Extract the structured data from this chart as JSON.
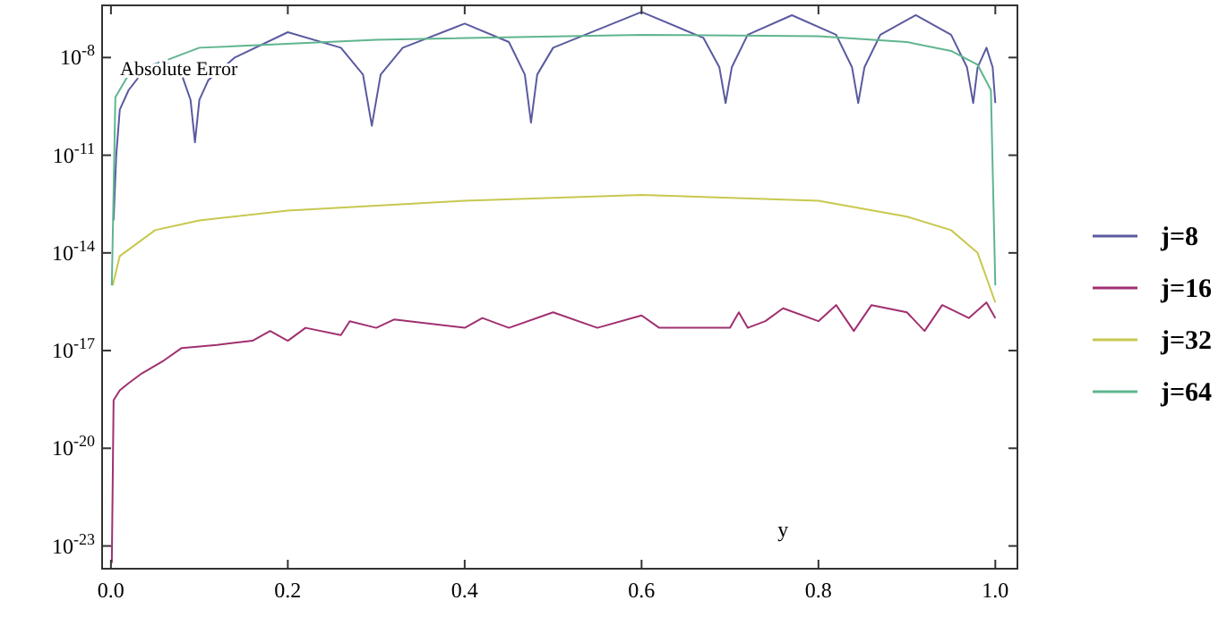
{
  "chart_data": {
    "type": "line",
    "xlabel": "y",
    "ylabel": "Absolute Error",
    "log": "y",
    "grid": false,
    "legend": "right",
    "line_style": "solid",
    "xlim": [
      -0.01,
      1.025
    ],
    "xticks": [
      {
        "value": 0,
        "label": "0.0"
      },
      {
        "value": 0.2,
        "label": "0.2"
      },
      {
        "value": 0.4,
        "label": "0.4"
      },
      {
        "value": 0.6,
        "label": "0.6"
      },
      {
        "value": 0.8,
        "label": "0.8"
      },
      {
        "value": 1,
        "label": "1.0"
      }
    ],
    "ylim": [
      2e-24,
      4e-07
    ],
    "yticks": [
      {
        "value": 1e-08,
        "label": "10$^{-8}$"
      },
      {
        "value": 1e-11,
        "label": "10$^{-11}$"
      },
      {
        "value": 1e-14,
        "label": "10$^{-14}$"
      },
      {
        "value": 1e-17,
        "label": "10$^{-17}$"
      },
      {
        "value": 1e-20,
        "label": "10$^{-20}$"
      },
      {
        "value": 1e-23,
        "label": "10$^{-23}$"
      }
    ],
    "series": [
      {
        "name": "j=8",
        "color": "#5a5aa0",
        "x": [
          0.003,
          0.006,
          0.01,
          0.02,
          0.04,
          0.06,
          0.08,
          0.09,
          0.095,
          0.1,
          0.11,
          0.14,
          0.2,
          0.26,
          0.285,
          0.295,
          0.305,
          0.33,
          0.4,
          0.45,
          0.468,
          0.475,
          0.482,
          0.5,
          0.6,
          0.67,
          0.688,
          0.695,
          0.702,
          0.72,
          0.77,
          0.82,
          0.838,
          0.845,
          0.852,
          0.87,
          0.91,
          0.95,
          0.968,
          0.975,
          0.98,
          0.99,
          0.997,
          1.0
        ],
        "values": [
          1e-13,
          1e-11,
          2.5e-10,
          1e-09,
          5e-09,
          8e-09,
          3e-09,
          5e-10,
          2.5e-11,
          5e-10,
          2e-09,
          1e-08,
          6e-08,
          2e-08,
          3e-09,
          8e-11,
          3e-09,
          2e-08,
          1.1e-07,
          3e-08,
          3e-09,
          1e-10,
          3e-09,
          2e-08,
          2.5e-07,
          4e-08,
          5e-09,
          4e-10,
          5e-09,
          5e-08,
          2e-07,
          5e-08,
          5e-09,
          4e-10,
          5e-09,
          5e-08,
          2e-07,
          5e-08,
          5e-09,
          4e-10,
          5e-09,
          2e-08,
          5e-09,
          4e-10
        ]
      },
      {
        "name": "j=16",
        "color": "#a03070",
        "x": [
          0.001,
          0.003,
          0.01,
          0.02,
          0.035,
          0.06,
          0.08,
          0.12,
          0.16,
          0.18,
          0.2,
          0.22,
          0.26,
          0.27,
          0.3,
          0.32,
          0.4,
          0.42,
          0.45,
          0.5,
          0.55,
          0.6,
          0.62,
          0.7,
          0.71,
          0.72,
          0.74,
          0.76,
          0.8,
          0.82,
          0.84,
          0.86,
          0.9,
          0.92,
          0.94,
          0.97,
          0.99,
          1.0
        ],
        "values": [
          3e-24,
          3e-19,
          6e-19,
          1e-18,
          2e-18,
          5e-18,
          1.2e-17,
          1.5e-17,
          2e-17,
          4e-17,
          2e-17,
          5e-17,
          3e-17,
          8e-17,
          5e-17,
          9e-17,
          5e-17,
          1e-16,
          5e-17,
          1.5e-16,
          5e-17,
          1.2e-16,
          5e-17,
          5e-17,
          1.5e-16,
          5e-17,
          8e-17,
          2e-16,
          8e-17,
          2.5e-16,
          4e-17,
          2.5e-16,
          1.5e-16,
          4e-17,
          2.5e-16,
          1e-16,
          3e-16,
          1e-16
        ]
      },
      {
        "name": "j=32",
        "color": "#c8c850",
        "x": [
          0.002,
          0.01,
          0.05,
          0.1,
          0.2,
          0.4,
          0.6,
          0.8,
          0.9,
          0.95,
          0.98,
          1.0
        ],
        "values": [
          1e-15,
          8e-15,
          5e-14,
          1e-13,
          2e-13,
          4e-13,
          6e-13,
          4e-13,
          1.3e-13,
          5e-14,
          1e-14,
          3e-16
        ]
      },
      {
        "name": "j=64",
        "color": "#5fb58f",
        "x": [
          0.001,
          0.005,
          0.02,
          0.1,
          0.3,
          0.6,
          0.8,
          0.9,
          0.95,
          0.98,
          0.995,
          1.0
        ],
        "values": [
          1e-15,
          6e-10,
          3e-09,
          2e-08,
          3.5e-08,
          5e-08,
          4.5e-08,
          3e-08,
          1.6e-08,
          6e-09,
          1e-09,
          1e-15
        ]
      }
    ]
  }
}
